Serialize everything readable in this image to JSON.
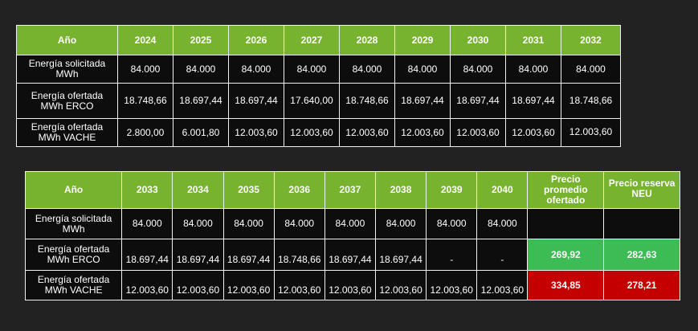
{
  "table1": {
    "header": {
      "label": "Año",
      "years": [
        "2024",
        "2025",
        "2026",
        "2027",
        "2028",
        "2029",
        "2030",
        "2031",
        "2032"
      ]
    },
    "rows": [
      {
        "label_line1": "Energía solicitada",
        "label_line2": "MWh",
        "values": [
          "84.000",
          "84.000",
          "84.000",
          "84.000",
          "84.000",
          "84.000",
          "84.000",
          "84.000",
          "84.000"
        ]
      },
      {
        "label_line1": "Energía ofertada",
        "label_line2": "MWh ERCO",
        "values": [
          "18.748,66",
          "18.697,44",
          "18.697,44",
          "17.640,00",
          "18.748,66",
          "18.697,44",
          "18.697,44",
          "18.697,44",
          "18.748,66"
        ]
      },
      {
        "label_line1": "Energía ofertada",
        "label_line2": "MWh  VACHE",
        "values": [
          "2.800,00",
          "6.001,80",
          "12.003,60",
          "12.003,60",
          "12.003,60",
          "12.003,60",
          "12.003,60",
          "12.003,60",
          "12.003,60"
        ]
      }
    ]
  },
  "table2": {
    "header": {
      "label": "Año",
      "years": [
        "2033",
        "2034",
        "2035",
        "2036",
        "2037",
        "2038",
        "2039",
        "2040"
      ],
      "precio_promedio": {
        "line1": "Precio",
        "line2": "promedio",
        "line3": "ofertado"
      },
      "precio_reserva": {
        "line1": "Precio reserva",
        "line2": "NEU"
      }
    },
    "rows": [
      {
        "label_line1": "Energía solicitada",
        "label_line2": "MWh",
        "values": [
          "84.000",
          "84.000",
          "84.000",
          "84.000",
          "84.000",
          "84.000",
          "84.000",
          "84.000"
        ],
        "precio_promedio": "",
        "precio_reserva": ""
      },
      {
        "label_line1": "Energía ofertada",
        "label_line2": "MWh ERCO",
        "values": [
          "18.697,44",
          "18.697,44",
          "18.697,44",
          "18.748,66",
          "18.697,44",
          "18.697,44",
          "-",
          "-"
        ],
        "precio_promedio": "269,92",
        "precio_reserva": "282,63"
      },
      {
        "label_line1": "Energía ofertada",
        "label_line2": "MWh  VACHE",
        "values": [
          "12.003,60",
          "12.003,60",
          "12.003,60",
          "12.003,60",
          "12.003,60",
          "12.003,60",
          "12.003,60",
          "12.003,60"
        ],
        "precio_promedio": "334,85",
        "precio_reserva": "278,21"
      }
    ],
    "colors": {
      "header_green": "#77b32f",
      "price_green": "#3dbb55",
      "price_red": "#c40000"
    }
  }
}
